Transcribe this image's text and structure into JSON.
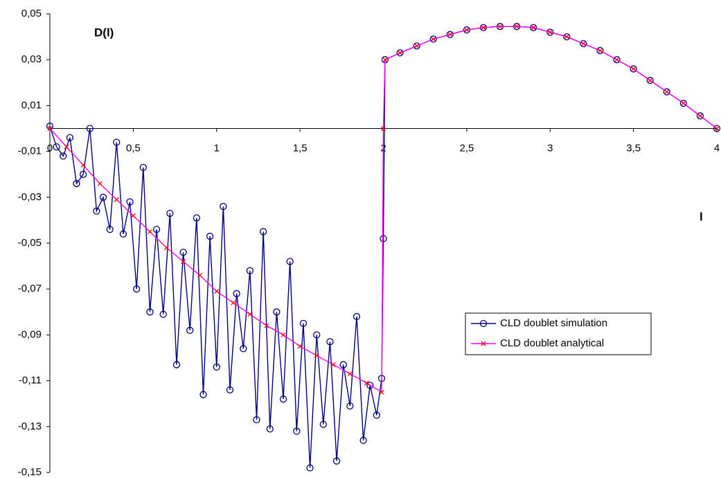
{
  "chart_data": {
    "type": "line",
    "y_label": "D(l)",
    "x_label": "l",
    "xlim": [
      0,
      4
    ],
    "ylim": [
      -0.15,
      0.05
    ],
    "xticks": [
      0,
      {
        "value": 0.5,
        "label": "0,5"
      },
      1,
      {
        "value": 1.5,
        "label": "1,5"
      },
      2,
      {
        "value": 2.5,
        "label": "2,5"
      },
      3,
      {
        "value": 3.5,
        "label": "3,5"
      },
      4
    ],
    "yticks": [
      {
        "value": 0.05,
        "label": "0,05"
      },
      {
        "value": 0.03,
        "label": "0,03"
      },
      {
        "value": 0.01,
        "label": "0,01"
      },
      {
        "value": -0.01,
        "label": "-0,01"
      },
      {
        "value": -0.03,
        "label": "-0,03"
      },
      {
        "value": -0.05,
        "label": "-0,05"
      },
      {
        "value": -0.07,
        "label": "-0,07"
      },
      {
        "value": -0.09,
        "label": "-0,09"
      },
      {
        "value": -0.11,
        "label": "-0,11"
      },
      {
        "value": -0.13,
        "label": "-0,13"
      },
      {
        "value": -0.15,
        "label": "-0,15"
      }
    ],
    "grid": false,
    "legend": "right",
    "series": [
      {
        "name": "CLD doublet simulation",
        "color": "#000080",
        "marker": "circle",
        "x": [
          0,
          0.04,
          0.08,
          0.12,
          0.16,
          0.2,
          0.24,
          0.28,
          0.32,
          0.36,
          0.4,
          0.44,
          0.48,
          0.52,
          0.56,
          0.6,
          0.64,
          0.68,
          0.72,
          0.76,
          0.8,
          0.84,
          0.88,
          0.92,
          0.96,
          1,
          1.04,
          1.08,
          1.12,
          1.16,
          1.2,
          1.24,
          1.28,
          1.32,
          1.36,
          1.4,
          1.44,
          1.48,
          1.52,
          1.56,
          1.6,
          1.64,
          1.68,
          1.72,
          1.76,
          1.8,
          1.84,
          1.88,
          1.92,
          1.96,
          1.99,
          2,
          2.01,
          2.1,
          2.2,
          2.3,
          2.4,
          2.5,
          2.6,
          2.7,
          2.8,
          2.9,
          3,
          3.1,
          3.2,
          3.3,
          3.4,
          3.5,
          3.6,
          3.7,
          3.8,
          3.9,
          4
        ],
        "values": [
          0.001,
          -0.008,
          -0.012,
          -0.004,
          -0.024,
          -0.02,
          0,
          -0.036,
          -0.03,
          -0.044,
          -0.006,
          -0.046,
          -0.032,
          -0.07,
          -0.017,
          -0.08,
          -0.044,
          -0.081,
          -0.037,
          -0.103,
          -0.054,
          -0.088,
          -0.039,
          -0.116,
          -0.047,
          -0.104,
          -0.034,
          -0.114,
          -0.072,
          -0.096,
          -0.062,
          -0.127,
          -0.045,
          -0.131,
          -0.08,
          -0.118,
          -0.058,
          -0.132,
          -0.085,
          -0.148,
          -0.09,
          -0.129,
          -0.093,
          -0.145,
          -0.103,
          -0.121,
          -0.082,
          -0.136,
          -0.112,
          -0.125,
          -0.109,
          -0.048,
          0.03,
          0.033,
          0.036,
          0.039,
          0.041,
          0.043,
          0.044,
          0.0445,
          0.0445,
          0.044,
          0.042,
          0.04,
          0.037,
          0.034,
          0.03,
          0.026,
          0.021,
          0.016,
          0.011,
          0.0055,
          0
        ]
      },
      {
        "name": "CLD doublet analytical",
        "color": "#ff00ff",
        "marker_color": "#ff0000",
        "marker": "cross",
        "x": [
          0,
          0.1,
          0.2,
          0.3,
          0.4,
          0.5,
          0.6,
          0.7,
          0.8,
          0.9,
          1,
          1.1,
          1.2,
          1.3,
          1.4,
          1.5,
          1.6,
          1.7,
          1.8,
          1.9,
          1.99,
          2,
          2.01,
          2.1,
          2.2,
          2.3,
          2.4,
          2.5,
          2.6,
          2.7,
          2.8,
          2.9,
          3,
          3.1,
          3.2,
          3.3,
          3.4,
          3.5,
          3.6,
          3.7,
          3.8,
          3.9,
          4
        ],
        "values": [
          0,
          -0.008,
          -0.016,
          -0.024,
          -0.031,
          -0.038,
          -0.045,
          -0.052,
          -0.058,
          -0.064,
          -0.071,
          -0.076,
          -0.081,
          -0.086,
          -0.09,
          -0.095,
          -0.099,
          -0.103,
          -0.107,
          -0.111,
          -0.115,
          0,
          0.03,
          0.033,
          0.036,
          0.039,
          0.041,
          0.043,
          0.044,
          0.0445,
          0.0445,
          0.044,
          0.042,
          0.04,
          0.037,
          0.034,
          0.03,
          0.026,
          0.021,
          0.016,
          0.011,
          0.0055,
          0
        ]
      }
    ]
  }
}
